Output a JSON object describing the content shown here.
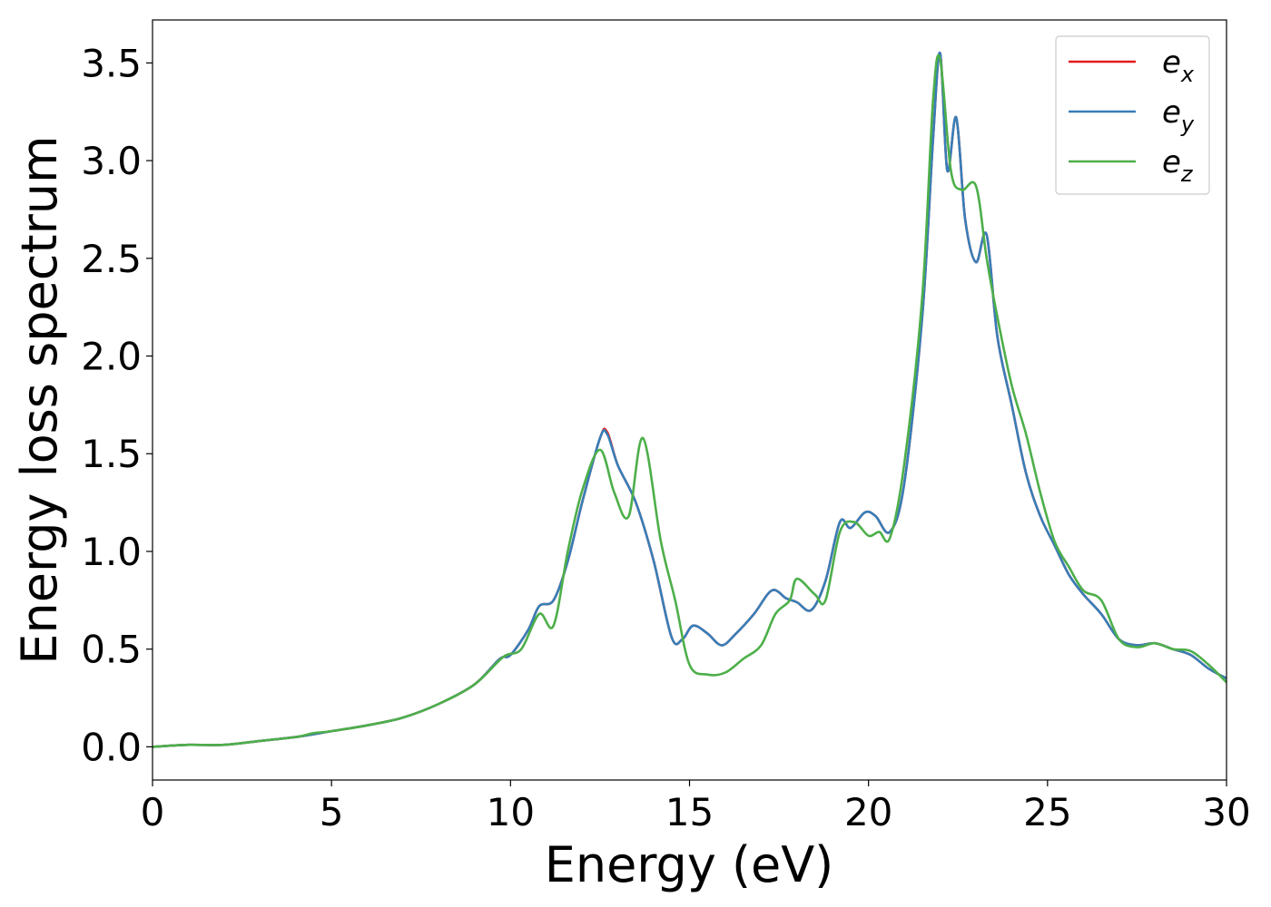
{
  "chart_data": {
    "type": "line",
    "title": "",
    "xlabel": "Energy (eV)",
    "ylabel": "Energy loss spectrum",
    "xlim": [
      0,
      30
    ],
    "ylim": [
      -0.17,
      3.72
    ],
    "xticks": [
      0,
      5,
      10,
      15,
      20,
      25,
      30
    ],
    "xtick_labels": [
      "0",
      "5",
      "10",
      "15",
      "20",
      "25",
      "30"
    ],
    "yticks": [
      0.0,
      0.5,
      1.0,
      1.5,
      2.0,
      2.5,
      3.0,
      3.5
    ],
    "ytick_labels": [
      "0.0",
      "0.5",
      "1.0",
      "1.5",
      "2.0",
      "2.5",
      "3.0",
      "3.5"
    ],
    "grid": false,
    "legend_position": "top-right",
    "series": [
      {
        "name": "e_x",
        "legend_base": "e",
        "legend_sub": "x",
        "color": "#e41a1c",
        "x": [
          0,
          1,
          2,
          3,
          4,
          5,
          6,
          7,
          8,
          9,
          9.7,
          10,
          10.5,
          10.8,
          11.2,
          11.6,
          12,
          12.5,
          12.7,
          13,
          13.5,
          14,
          14.5,
          14.8,
          15.1,
          15.5,
          15.9,
          16.3,
          16.8,
          17.3,
          17.7,
          18,
          18.4,
          18.8,
          19.2,
          19.5,
          19.9,
          20.2,
          20.6,
          21,
          21.5,
          21.8,
          22,
          22.2,
          22.45,
          22.7,
          23,
          23.3,
          23.6,
          24,
          24.4,
          24.8,
          25.2,
          25.6,
          26,
          26.5,
          27,
          27.5,
          28,
          28.5,
          29,
          29.5,
          30
        ],
        "y": [
          0,
          0.01,
          0.01,
          0.03,
          0.05,
          0.08,
          0.11,
          0.15,
          0.22,
          0.32,
          0.45,
          0.47,
          0.6,
          0.72,
          0.75,
          0.95,
          1.25,
          1.58,
          1.61,
          1.44,
          1.25,
          0.95,
          0.56,
          0.55,
          0.62,
          0.58,
          0.52,
          0.58,
          0.68,
          0.8,
          0.76,
          0.74,
          0.7,
          0.85,
          1.15,
          1.12,
          1.2,
          1.18,
          1.1,
          1.35,
          2.2,
          3.1,
          3.55,
          2.95,
          3.22,
          2.7,
          2.48,
          2.62,
          2.1,
          1.75,
          1.4,
          1.18,
          1.03,
          0.88,
          0.78,
          0.68,
          0.55,
          0.52,
          0.53,
          0.5,
          0.47,
          0.4,
          0.35
        ]
      },
      {
        "name": "e_y",
        "legend_base": "e",
        "legend_sub": "y",
        "color": "#377eb8",
        "x": [
          0,
          1,
          2,
          3,
          4,
          5,
          6,
          7,
          8,
          9,
          9.7,
          10,
          10.5,
          10.8,
          11.2,
          11.6,
          12,
          12.5,
          12.7,
          13,
          13.5,
          14,
          14.5,
          14.8,
          15.1,
          15.5,
          15.9,
          16.3,
          16.8,
          17.3,
          17.7,
          18,
          18.4,
          18.8,
          19.2,
          19.5,
          19.9,
          20.2,
          20.6,
          21,
          21.5,
          21.8,
          22,
          22.2,
          22.45,
          22.7,
          23,
          23.3,
          23.6,
          24,
          24.4,
          24.8,
          25.2,
          25.6,
          26,
          26.5,
          27,
          27.5,
          28,
          28.5,
          29,
          29.5,
          30
        ],
        "y": [
          0,
          0.01,
          0.01,
          0.03,
          0.05,
          0.08,
          0.11,
          0.15,
          0.22,
          0.32,
          0.45,
          0.47,
          0.6,
          0.72,
          0.75,
          0.95,
          1.25,
          1.58,
          1.6,
          1.44,
          1.25,
          0.95,
          0.56,
          0.55,
          0.62,
          0.58,
          0.52,
          0.58,
          0.68,
          0.8,
          0.76,
          0.74,
          0.7,
          0.85,
          1.15,
          1.12,
          1.2,
          1.18,
          1.1,
          1.35,
          2.2,
          3.1,
          3.55,
          2.95,
          3.22,
          2.7,
          2.48,
          2.62,
          2.1,
          1.75,
          1.4,
          1.18,
          1.03,
          0.88,
          0.78,
          0.68,
          0.55,
          0.52,
          0.53,
          0.5,
          0.47,
          0.4,
          0.35
        ]
      },
      {
        "name": "e_z",
        "legend_base": "e",
        "legend_sub": "z",
        "color": "#4daf4a",
        "x": [
          0,
          1,
          2,
          3,
          4,
          4.5,
          5,
          6,
          7,
          8,
          9,
          9.8,
          10.3,
          10.8,
          11.2,
          11.6,
          12,
          12.5,
          12.9,
          13.3,
          13.7,
          14.2,
          14.6,
          15,
          15.5,
          16,
          16.5,
          17,
          17.4,
          17.8,
          18,
          18.5,
          18.8,
          19.2,
          19.6,
          20,
          20.3,
          20.6,
          21,
          21.5,
          21.8,
          22,
          22.3,
          22.6,
          23,
          23.3,
          23.6,
          24,
          24.4,
          24.8,
          25.2,
          25.6,
          26,
          26.5,
          27,
          27.5,
          28,
          28.5,
          29,
          29.5,
          30
        ],
        "y": [
          0,
          0.01,
          0.01,
          0.03,
          0.05,
          0.07,
          0.08,
          0.11,
          0.15,
          0.22,
          0.32,
          0.46,
          0.5,
          0.68,
          0.62,
          1.0,
          1.31,
          1.52,
          1.3,
          1.18,
          1.58,
          1.05,
          0.75,
          0.42,
          0.37,
          0.38,
          0.45,
          0.52,
          0.68,
          0.75,
          0.86,
          0.78,
          0.75,
          1.1,
          1.15,
          1.08,
          1.1,
          1.07,
          1.45,
          2.3,
          3.3,
          3.52,
          2.95,
          2.85,
          2.87,
          2.5,
          2.2,
          1.85,
          1.6,
          1.3,
          1.05,
          0.92,
          0.8,
          0.75,
          0.55,
          0.51,
          0.53,
          0.5,
          0.49,
          0.42,
          0.33
        ]
      }
    ]
  }
}
